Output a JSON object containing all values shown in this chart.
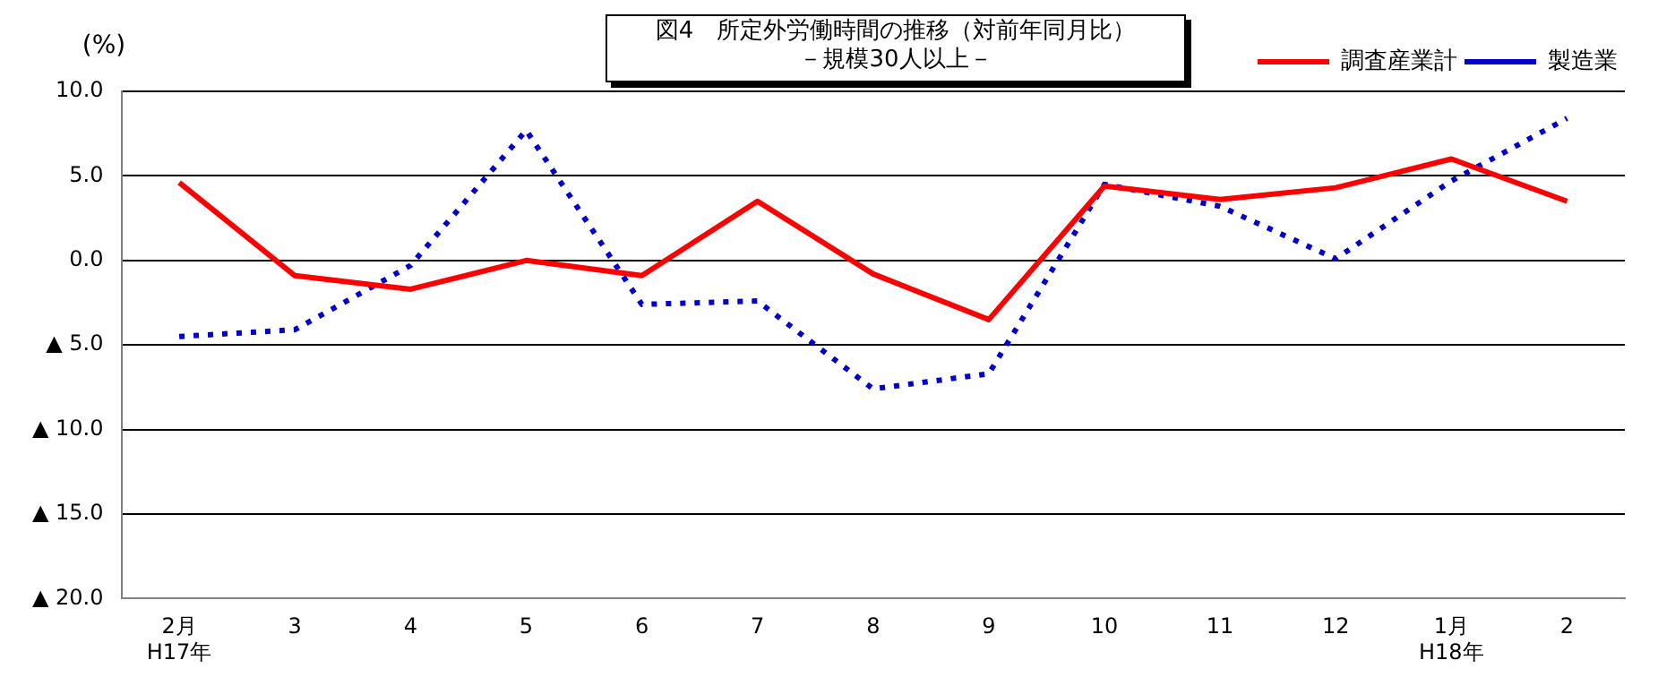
{
  "chart_data": {
    "type": "line",
    "title": "図4　所定外労働時間の推移（対前年同月比）",
    "subtitle": "－規模30人以上－",
    "ylabel": "(%)",
    "categories": [
      "2月\nH17年",
      "3",
      "4",
      "5",
      "6",
      "7",
      "8",
      "9",
      "10",
      "11",
      "12",
      "1月\nH18年",
      "2"
    ],
    "series": [
      {
        "name": "調査産業計",
        "color": "#ff0000",
        "line_style": "solid",
        "values": [
          4.6,
          -0.9,
          -1.7,
          0.0,
          -0.9,
          3.5,
          -0.8,
          -3.5,
          4.4,
          3.6,
          4.3,
          6.0,
          3.5
        ]
      },
      {
        "name": "製造業",
        "color": "#0000cc",
        "line_style": "dotted",
        "values": [
          -4.5,
          -4.1,
          -0.3,
          7.7,
          -2.6,
          -2.4,
          -7.6,
          -6.7,
          4.5,
          3.2,
          0.1,
          4.7,
          8.4
        ]
      }
    ],
    "ylim": [
      -20,
      10
    ],
    "yticks": [
      {
        "value": -20,
        "label": "▲ 20.0"
      },
      {
        "value": -15,
        "label": "▲ 15.0"
      },
      {
        "value": -10,
        "label": "▲ 10.0"
      },
      {
        "value": -5,
        "label": "▲ 5.0"
      },
      {
        "value": 0,
        "label": "0.0"
      },
      {
        "value": 5,
        "label": "5.0"
      },
      {
        "value": 10,
        "label": "10.0"
      }
    ],
    "grid": "y",
    "legend": "top right",
    "marker": "none"
  }
}
